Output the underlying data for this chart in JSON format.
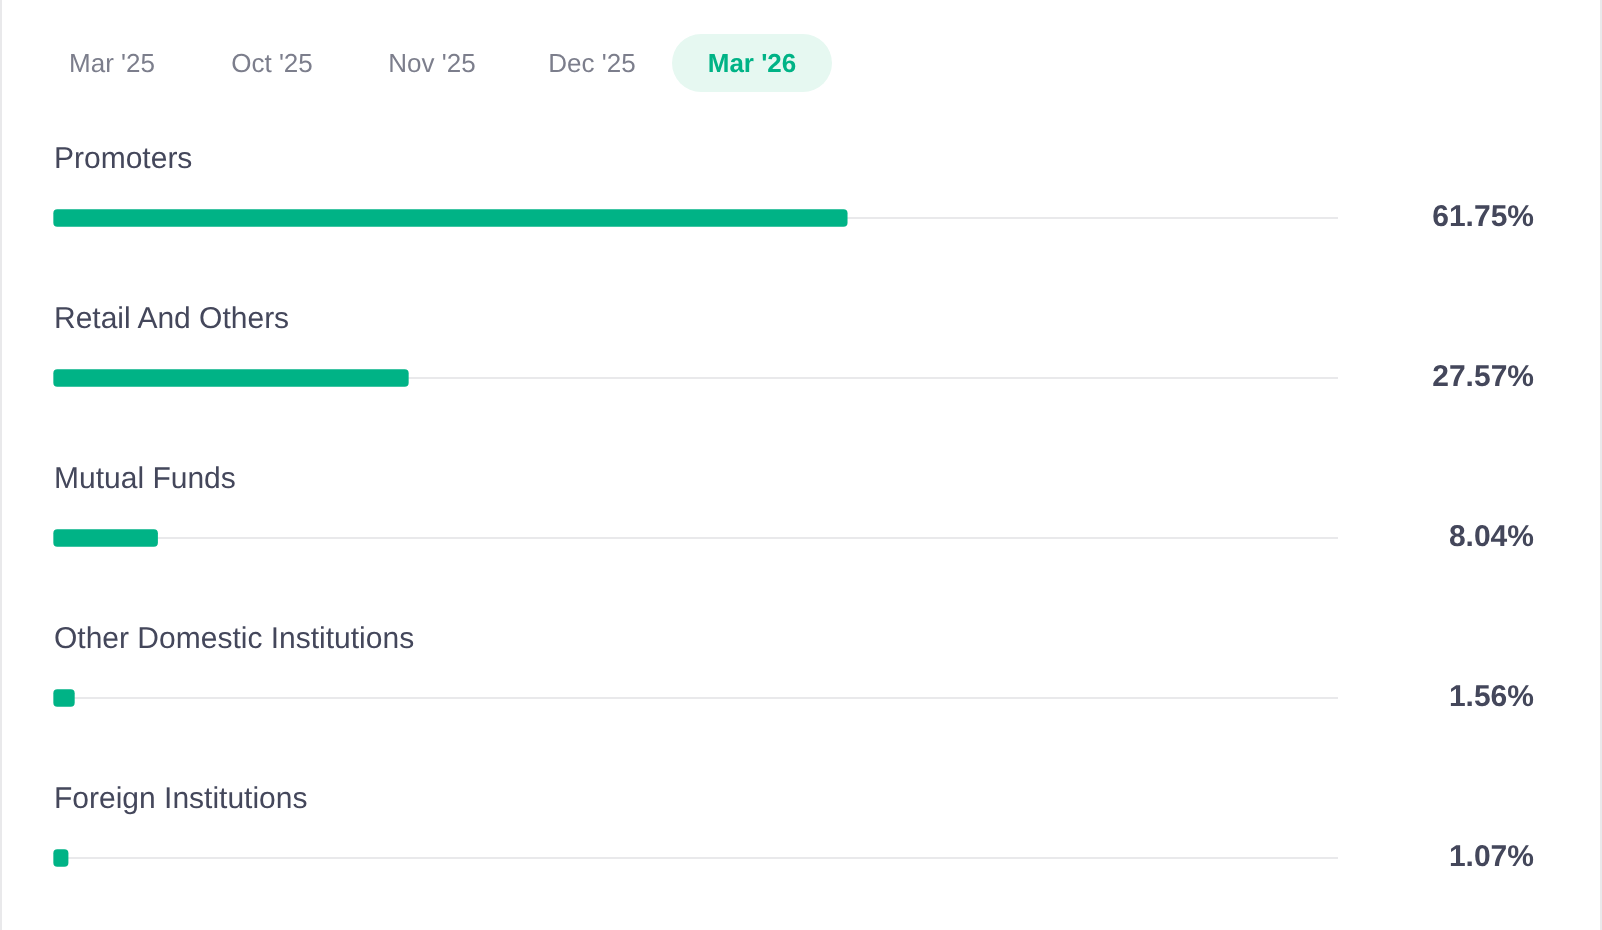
{
  "chart_data": {
    "type": "bar",
    "orientation": "horizontal",
    "categories": [
      "Promoters",
      "Retail And Others",
      "Mutual Funds",
      "Other Domestic Institutions",
      "Foreign Institutions"
    ],
    "values": [
      61.75,
      27.57,
      8.04,
      1.56,
      1.07
    ],
    "value_labels": [
      "61.75%",
      "27.57%",
      "8.04%",
      "1.56%",
      "1.07%"
    ],
    "color": "#00b386",
    "xlim": [
      0,
      100
    ],
    "grid": "y",
    "tick_labels": "y",
    "annotations": [
      "Mar '25",
      "Oct '25",
      "Nov '25",
      "Dec '25",
      "Mar '26"
    ]
  }
}
